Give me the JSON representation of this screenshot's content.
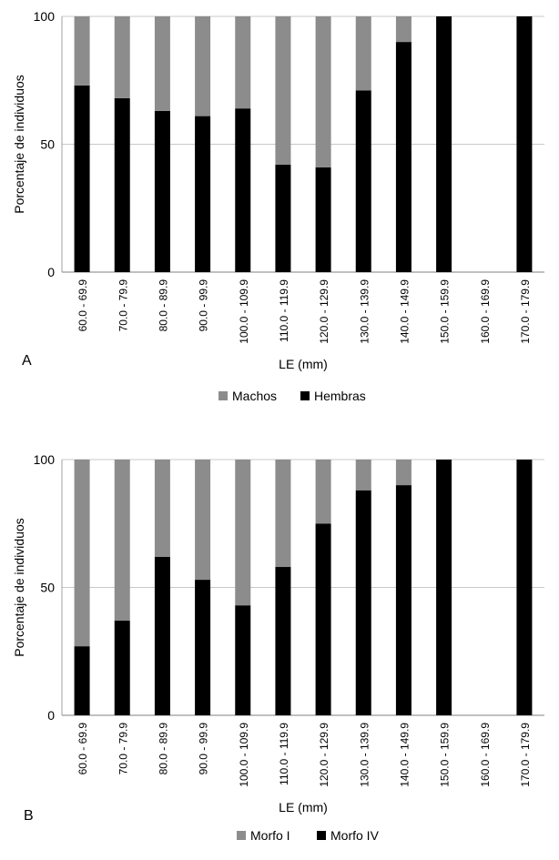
{
  "chart_data": [
    {
      "type": "bar",
      "stacked": true,
      "percent": true,
      "panel_label": "A",
      "categories": [
        "60.0 - 69.9",
        "70.0 - 79.9",
        "80.0 - 89.9",
        "90.0 - 99.9",
        "100.0 - 109.9",
        "110.0 - 119.9",
        "120.0 - 129.9",
        "130.0 - 139.9",
        "140.0 - 149.9",
        "150.0 - 159.9",
        "160.0 - 169.9",
        "170.0 - 179.9"
      ],
      "series": [
        {
          "name": "Hembras",
          "color": "#000000",
          "values": [
            73,
            68,
            63,
            61,
            64,
            42,
            41,
            71,
            90,
            100,
            0,
            100
          ]
        },
        {
          "name": "Machos",
          "color": "#8c8c8c",
          "values": [
            27,
            32,
            37,
            39,
            36,
            58,
            59,
            29,
            10,
            0,
            0,
            0
          ]
        }
      ],
      "legend_order": [
        "Machos",
        "Hembras"
      ],
      "xlabel": "LE (mm)",
      "ylabel": "Porcentaje de individuos",
      "ylim": [
        0,
        100
      ],
      "yticks": [
        0,
        50,
        100
      ],
      "grid": true,
      "legend_position": "bottom"
    },
    {
      "type": "bar",
      "stacked": true,
      "percent": true,
      "panel_label": "B",
      "categories": [
        "60.0 - 69.9",
        "70.0 - 79.9",
        "80.0 - 89.9",
        "90.0 - 99.9",
        "100.0 - 109.9",
        "110.0 - 119.9",
        "120.0 - 129.9",
        "130.0 - 139.9",
        "140.0 - 149.9",
        "150.0 - 159.9",
        "160.0 - 169.9",
        "170.0 - 179.9"
      ],
      "series": [
        {
          "name": "Morfo IV",
          "color": "#000000",
          "values": [
            27,
            37,
            62,
            53,
            43,
            58,
            75,
            88,
            90,
            100,
            0,
            100
          ]
        },
        {
          "name": "Morfo I",
          "color": "#8c8c8c",
          "values": [
            73,
            63,
            38,
            47,
            57,
            42,
            25,
            12,
            10,
            0,
            0,
            0
          ]
        }
      ],
      "legend_order": [
        "Morfo I",
        "Morfo IV"
      ],
      "xlabel": "LE (mm)",
      "ylabel": "Porcentaje de individuos",
      "ylim": [
        0,
        100
      ],
      "yticks": [
        0,
        50,
        100
      ],
      "grid": true,
      "legend_position": "bottom"
    }
  ]
}
